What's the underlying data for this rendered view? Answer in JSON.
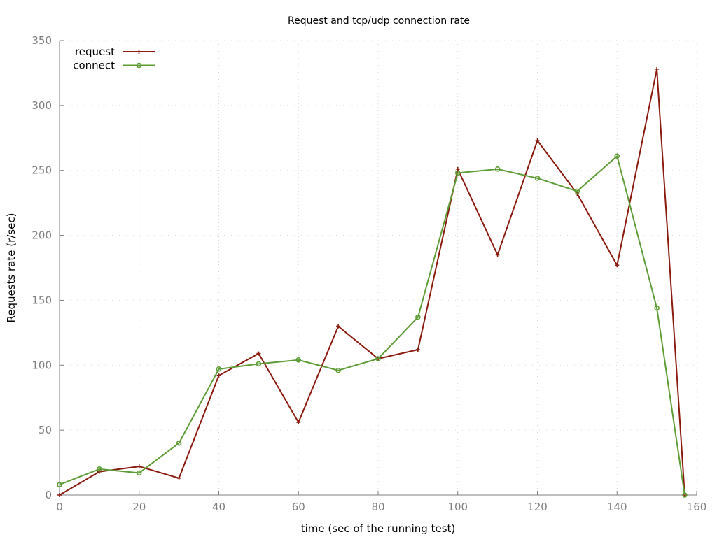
{
  "chart_data": {
    "type": "line",
    "title": "Request and tcp/udp connection rate",
    "xlabel": "time (sec of the running test)",
    "ylabel": "Requests rate (r/sec)",
    "xlim": [
      0,
      160
    ],
    "ylim": [
      0,
      350
    ],
    "xticks": [
      0,
      20,
      40,
      60,
      80,
      100,
      120,
      140,
      160
    ],
    "yticks": [
      0,
      50,
      100,
      150,
      200,
      250,
      300,
      350
    ],
    "grid": true,
    "legend_position": "top-left",
    "series": [
      {
        "name": "request",
        "color": "#8b1a0e",
        "marker": "plus",
        "x": [
          0,
          10,
          20,
          30,
          40,
          50,
          60,
          70,
          80,
          90,
          100,
          110,
          120,
          130,
          140,
          150,
          157
        ],
        "y": [
          0,
          18,
          22,
          13,
          92,
          109,
          56,
          130,
          105,
          112,
          251,
          185,
          273,
          232,
          177,
          328,
          0
        ]
      },
      {
        "name": "connect",
        "color": "#5e9c36",
        "marker": "circle",
        "x": [
          0,
          10,
          20,
          30,
          40,
          50,
          60,
          70,
          80,
          90,
          100,
          110,
          120,
          130,
          140,
          150,
          157
        ],
        "y": [
          8,
          20,
          17,
          40,
          97,
          101,
          104,
          96,
          105,
          137,
          248,
          251,
          244,
          234,
          261,
          144,
          0
        ]
      }
    ]
  }
}
